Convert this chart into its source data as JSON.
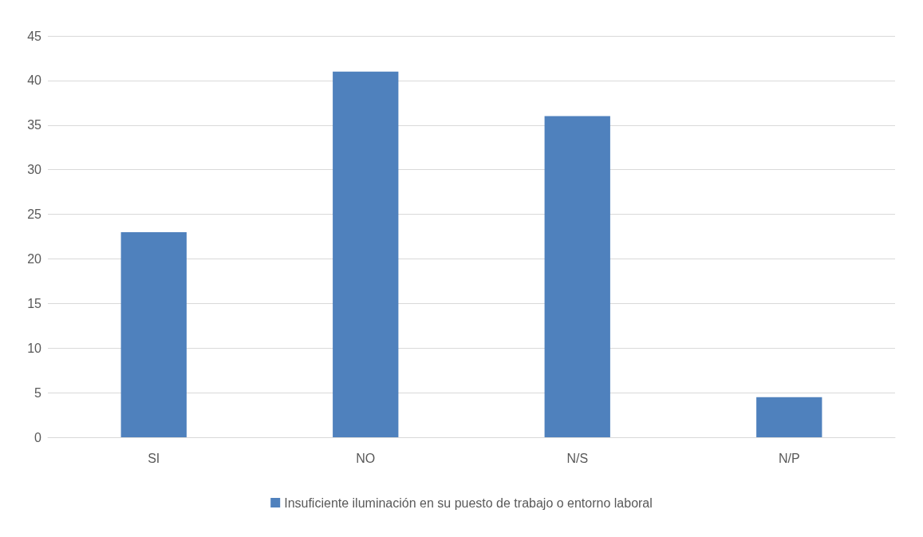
{
  "chart_data": {
    "type": "bar",
    "categories": [
      "SI",
      "NO",
      "N/S",
      "N/P"
    ],
    "series": [
      {
        "name": "Insuficiente iluminación en su puesto de trabajo o entorno laboral",
        "color": "#4f81bd",
        "values": [
          23,
          41,
          36,
          4.5
        ]
      }
    ],
    "ylim": [
      0,
      45
    ],
    "yticks": [
      0,
      5,
      10,
      15,
      20,
      25,
      30,
      35,
      40,
      45
    ],
    "grid": "y",
    "legend": "bottom"
  }
}
